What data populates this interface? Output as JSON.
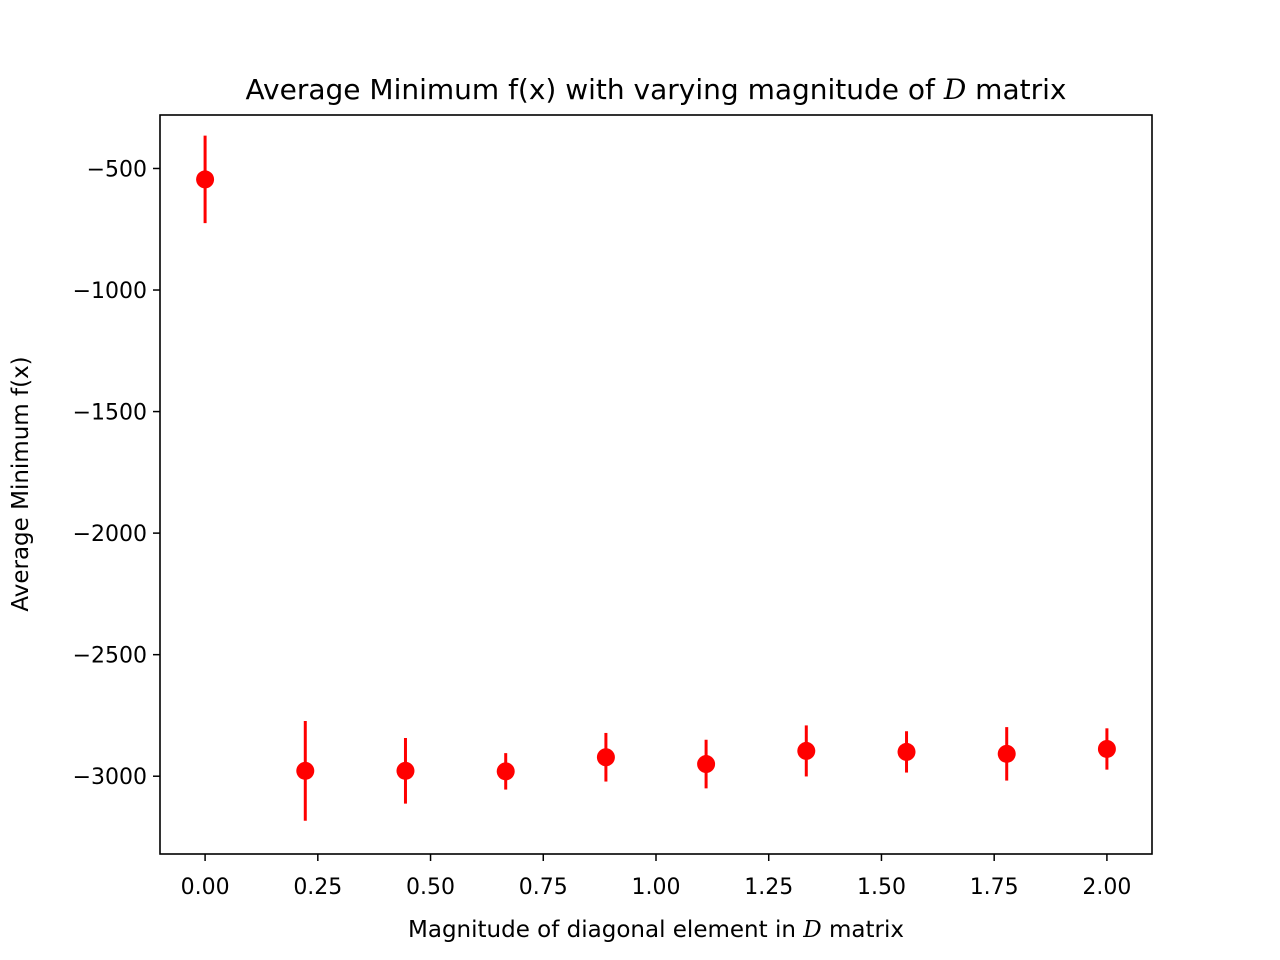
{
  "chart_data": {
    "type": "scatter",
    "title": {
      "prefix": "Average Minimum f(x) with varying magnitude of ",
      "italic": "D",
      "suffix": " matrix"
    },
    "xlabel": {
      "prefix": "Magnitude of diagonal element in ",
      "italic": "D",
      "suffix": " matrix"
    },
    "ylabel": "Average Minimum f(x)",
    "xlim": [
      -0.1,
      2.1
    ],
    "ylim": [
      -3320,
      -280
    ],
    "x_ticks": [
      0.0,
      0.25,
      0.5,
      0.75,
      1.0,
      1.25,
      1.5,
      1.75,
      2.0
    ],
    "x_tick_labels": [
      "0.00",
      "0.25",
      "0.50",
      "0.75",
      "1.00",
      "1.25",
      "1.50",
      "1.75",
      "2.00"
    ],
    "y_ticks": [
      -500,
      -1000,
      -1500,
      -2000,
      -2500,
      -3000
    ],
    "y_tick_labels": [
      "−500",
      "−1000",
      "−1500",
      "−2000",
      "−2500",
      "−3000"
    ],
    "grid": false,
    "series": [
      {
        "color": "#ff0000",
        "points": [
          {
            "x": 0.0,
            "y": -545,
            "err": 180
          },
          {
            "x": 0.2222,
            "y": -2978,
            "err": 205
          },
          {
            "x": 0.4444,
            "y": -2978,
            "err": 135
          },
          {
            "x": 0.6667,
            "y": -2980,
            "err": 75
          },
          {
            "x": 0.8889,
            "y": -2922,
            "err": 100
          },
          {
            "x": 1.1111,
            "y": -2950,
            "err": 100
          },
          {
            "x": 1.3333,
            "y": -2896,
            "err": 105
          },
          {
            "x": 1.5556,
            "y": -2900,
            "err": 85
          },
          {
            "x": 1.7778,
            "y": -2908,
            "err": 110
          },
          {
            "x": 2.0,
            "y": -2888,
            "err": 85
          }
        ]
      }
    ]
  }
}
